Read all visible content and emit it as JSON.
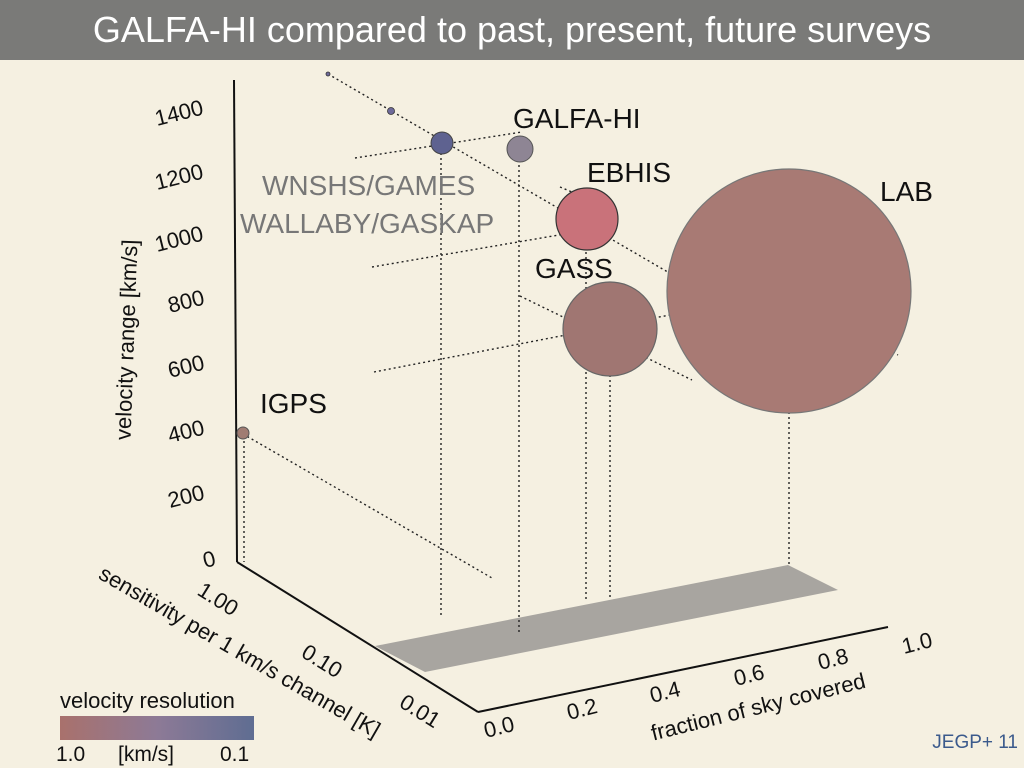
{
  "header": {
    "title": "GALFA-HI compared to past, present, future surveys"
  },
  "footer": {
    "text": "JEGP+ 11"
  },
  "legend": {
    "title": "velocity resolution",
    "tick_left": "1.0",
    "tick_mid": "[km/s]",
    "tick_right": "0.1",
    "color_scale": [
      "#a9716c",
      "#8d7a96",
      "#5f6d92"
    ]
  },
  "chart_data": {
    "type": "scatter",
    "title": "",
    "xlabel": "fraction of sky covered",
    "ylabel": "sensitivity per 1 km/s channel [K]",
    "zlabel": "velocity range [km/s]",
    "x_ticks": [
      "0.0",
      "0.2",
      "0.4",
      "0.6",
      "0.8",
      "1.0"
    ],
    "y_ticks": [
      "0.01",
      "0.10",
      "1.00"
    ],
    "z_ticks": [
      "0",
      "200",
      "400",
      "600",
      "800",
      "1000",
      "1200",
      "1400"
    ],
    "xlim": [
      0,
      1
    ],
    "zlim": [
      0,
      1400
    ],
    "points": [
      {
        "name": "IGPS",
        "color": "#a07c72"
      },
      {
        "name": "GALFA-HI",
        "color": "#8e8594"
      },
      {
        "name": "WNSHS/GAMES",
        "color": "#5e6290"
      },
      {
        "name": "WALLABY/GASKAP",
        "color": "#6e6a9a"
      },
      {
        "name": "EBHIS",
        "color": "#c9727a"
      },
      {
        "name": "GASS",
        "color": "#a07672"
      },
      {
        "name": "LAB",
        "color": "#a87a74"
      }
    ]
  }
}
